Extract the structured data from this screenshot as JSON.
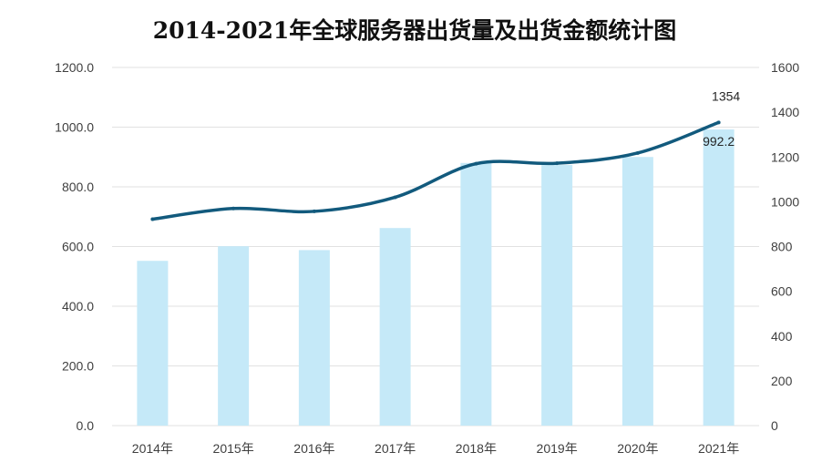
{
  "chart_data": {
    "type": "bar+line",
    "title": "2014-2021年全球服务器出货量及出货金额统计图",
    "categories": [
      "2014年",
      "2015年",
      "2016年",
      "2017年",
      "2018年",
      "2019年",
      "2020年",
      "2021年"
    ],
    "series": [
      {
        "type": "bar",
        "axis": "left",
        "color": "#c5e9f8",
        "values": [
          552.0,
          601.0,
          588.0,
          662.0,
          880.0,
          873.0,
          900.0,
          992.2
        ]
      },
      {
        "type": "line",
        "axis": "right",
        "color": "#125a7d",
        "values": [
          922,
          970,
          957,
          1020,
          1170,
          1172,
          1218,
          1354
        ]
      }
    ],
    "y_left": {
      "min": 0,
      "max": 1200,
      "step": 200,
      "tick_labels": [
        "0.0",
        "200.0",
        "400.0",
        "600.0",
        "800.0",
        "1000.0",
        "1200.0"
      ]
    },
    "y_right": {
      "min": 0,
      "max": 1600,
      "step": 200,
      "tick_labels": [
        "0",
        "200",
        "400",
        "600",
        "800",
        "1000",
        "1200",
        "1400",
        "1600"
      ]
    },
    "data_labels": [
      {
        "series": 0,
        "index": 7,
        "text": "992.2"
      },
      {
        "series": 1,
        "index": 7,
        "text": "1354"
      }
    ],
    "grid": true,
    "legend": "none"
  }
}
